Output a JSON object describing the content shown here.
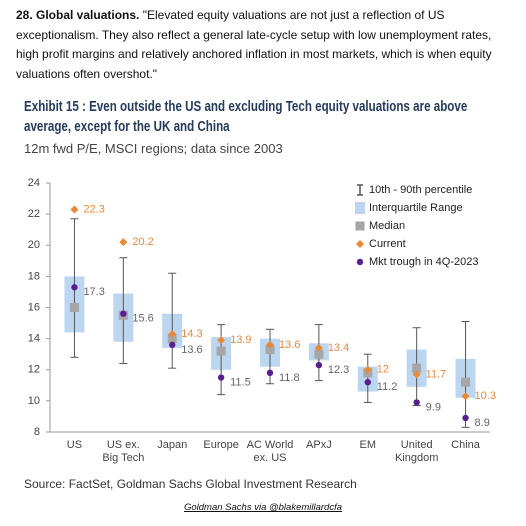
{
  "document": {
    "heading": "28. Global valuations.",
    "body": "\"Elevated equity valuations are not just a reflection of US exceptionalism. They also reflect a general late-cycle setup with low unemployment rates, high profit margins and relatively anchored inflation in most markets, which is when equity valuations often overshot.\"",
    "footer": "Goldman Sachs via @blakemillardcfa"
  },
  "chart_data": {
    "type": "box",
    "title": "Exhibit 15 : Even outside the US and excluding Tech equity valuations are above average, except for the UK and China",
    "subtitle": "12m fwd P/E, MSCI regions; data since 2003",
    "source": "Source: FactSet, Goldman Sachs Global Investment Research",
    "categories": [
      [
        "US"
      ],
      [
        "US ex.",
        "Big Tech"
      ],
      [
        "Japan"
      ],
      [
        "Europe"
      ],
      [
        "AC World",
        "ex. US"
      ],
      [
        "APxJ"
      ],
      [
        "EM"
      ],
      [
        "United",
        "Kingdom"
      ],
      [
        "China"
      ]
    ],
    "ylim": [
      8,
      24
    ],
    "yticks": [
      8,
      10,
      12,
      14,
      16,
      18,
      20,
      22,
      24
    ],
    "legend": "top-right",
    "series": [
      {
        "name": "10th - 90th percentile",
        "color": "#555555",
        "low": [
          12.8,
          12.4,
          12.1,
          10.4,
          11.1,
          11.3,
          9.9,
          9.7,
          8.3
        ],
        "high": [
          21.7,
          19.2,
          18.2,
          14.9,
          14.6,
          14.9,
          13.0,
          14.7,
          15.1
        ]
      },
      {
        "name": "Interquartile Range",
        "color": "#bcd6f0",
        "low": [
          14.4,
          13.8,
          13.4,
          12.0,
          12.2,
          12.6,
          10.6,
          10.9,
          10.2
        ],
        "high": [
          18.0,
          16.9,
          15.6,
          14.1,
          14.0,
          13.7,
          12.2,
          13.3,
          12.7
        ]
      },
      {
        "name": "Median",
        "color": "#a6a6a6",
        "values": [
          16.0,
          15.5,
          14.0,
          13.2,
          13.3,
          13.0,
          11.8,
          12.1,
          11.2
        ]
      },
      {
        "name": "Current",
        "color": "#e8893a",
        "values": [
          22.3,
          20.2,
          14.3,
          13.9,
          13.6,
          13.4,
          12.0,
          11.7,
          10.3
        ]
      },
      {
        "name": "Mkt trough in 4Q-2023",
        "color": "#5a1f8f",
        "values": [
          17.3,
          15.6,
          13.6,
          11.5,
          11.8,
          12.3,
          11.2,
          9.9,
          8.9
        ]
      }
    ]
  }
}
